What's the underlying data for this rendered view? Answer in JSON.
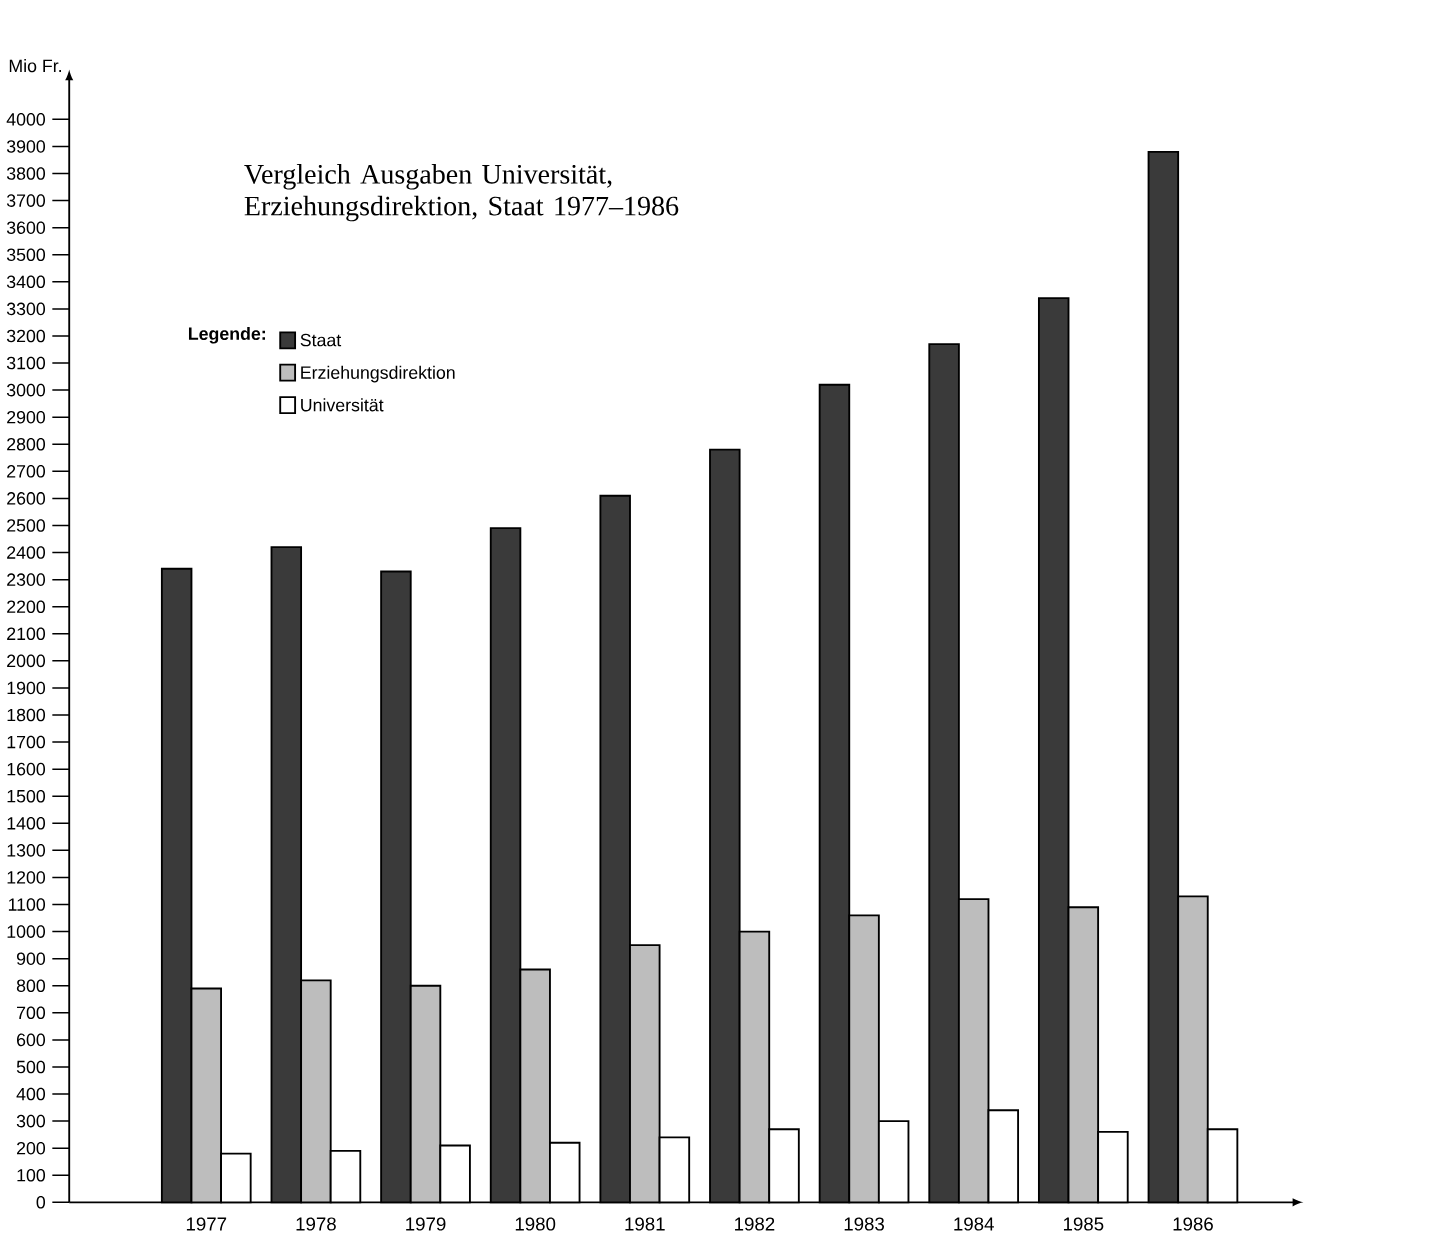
{
  "chart_data": {
    "type": "bar",
    "title": "Vergleich Ausgaben Universität, Erziehungsdirektion, Staat 1977–1986",
    "ylabel": "Mio Fr.",
    "legend_title": "Legende:",
    "legend": "top left",
    "grid": false,
    "categories": [
      "1977",
      "1978",
      "1979",
      "1980",
      "1981",
      "1982",
      "1983",
      "1984",
      "1985",
      "1986"
    ],
    "series": [
      {
        "name": "Staat",
        "color": "#3a3a3a",
        "values": [
          2340,
          2420,
          2330,
          2490,
          2610,
          2780,
          3020,
          3170,
          3340,
          3880
        ]
      },
      {
        "name": "Erziehungsdirektion",
        "color": "#bdbdbd",
        "values": [
          790,
          820,
          800,
          860,
          950,
          1000,
          1060,
          1120,
          1090,
          1130
        ]
      },
      {
        "name": "Universität",
        "color": "#ffffff",
        "values": [
          180,
          190,
          210,
          220,
          240,
          270,
          300,
          340,
          260,
          270
        ]
      }
    ],
    "ylim": [
      0,
      4150
    ],
    "yticks": [
      0,
      100,
      200,
      300,
      400,
      500,
      600,
      700,
      800,
      900,
      1000,
      1100,
      1200,
      1300,
      1400,
      1500,
      1600,
      1700,
      1800,
      1900,
      2000,
      2100,
      2200,
      2300,
      2400,
      2500,
      2600,
      2700,
      2800,
      2900,
      3000,
      3100,
      3200,
      3300,
      3400,
      3500,
      3600,
      3700,
      3800,
      3900,
      4000
    ]
  }
}
